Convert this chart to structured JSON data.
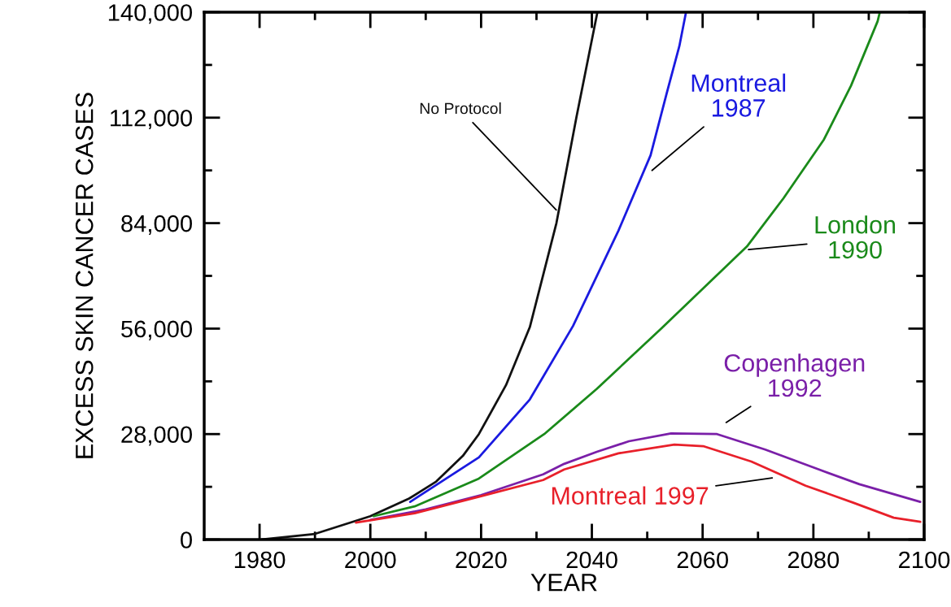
{
  "chart_data": {
    "type": "line",
    "xlabel": "YEAR",
    "ylabel": "EXCESS SKIN CANCER CASES",
    "xlim": [
      1970,
      2100
    ],
    "ylim": [
      0,
      140000
    ],
    "xticks": [
      1980,
      {
        "value": 1990,
        "label": null
      },
      2000,
      {
        "value": 2010,
        "label": null
      },
      2020,
      {
        "value": 2030,
        "label": null
      },
      2040,
      {
        "value": 2050,
        "label": null
      },
      2060,
      {
        "value": 2070,
        "label": null
      },
      2080,
      {
        "value": 2090,
        "label": null
      },
      2100
    ],
    "yticks": [
      {
        "value": 0,
        "label": "0"
      },
      {
        "value": 14000,
        "label": null
      },
      {
        "value": 28000,
        "label": "28,000"
      },
      {
        "value": 42000,
        "label": null
      },
      {
        "value": 56000,
        "label": "56,000"
      },
      {
        "value": 70000,
        "label": null
      },
      {
        "value": 84000,
        "label": "84,000"
      },
      {
        "value": 98000,
        "label": null
      },
      {
        "value": 112000,
        "label": "112,000"
      },
      {
        "value": 126000,
        "label": null
      },
      {
        "value": 140000,
        "label": "140,000"
      }
    ],
    "grid": false,
    "legend": false,
    "marker": "none",
    "line_style": "solid",
    "series": [
      {
        "name": "No Protocol",
        "color": "#111111",
        "x": [
          1980.4,
          1990,
          2000,
          2007,
          2011.9,
          2016.7,
          2019.6,
          2024.5,
          2028.8,
          2033.6,
          2037.2,
          2041
        ],
        "values": [
          0,
          1500,
          6200,
          10900,
          15400,
          22200,
          28000,
          41000,
          56400,
          84000,
          112000,
          140000
        ]
      },
      {
        "name": "Montreal\n1987",
        "color": "#1a1ae0",
        "x": [
          2007.2,
          2019.6,
          2028.8,
          2036.6,
          2044.8,
          2050.6,
          2053.5,
          2055.8,
          2057
        ],
        "values": [
          10000,
          21800,
          37200,
          56700,
          82000,
          102000,
          118400,
          131000,
          140000
        ]
      },
      {
        "name": "London\n1990",
        "color": "#1a8a1a",
        "x": [
          2000.6,
          2008,
          2019.6,
          2031.4,
          2040.9,
          2052.5,
          2068,
          2074.6,
          2081.9,
          2086.8,
          2091.6,
          2092
        ],
        "values": [
          6200,
          8800,
          16200,
          28000,
          40000,
          56000,
          77800,
          90600,
          106200,
          120500,
          137600,
          140000
        ]
      },
      {
        "name": "Copenhagen\n1992",
        "color": "#7a1fa8",
        "x": [
          2000,
          2010,
          2020,
          2031.2,
          2035,
          2040.9,
          2046.7,
          2054.3,
          2062.6,
          2071.3,
          2081,
          2088.3,
          2099.3
        ],
        "values": [
          5200,
          8000,
          11800,
          17300,
          20100,
          23300,
          26100,
          28200,
          28000,
          23900,
          18600,
          14700,
          10000
        ]
      },
      {
        "name": "Montreal 1997",
        "color": "#e8202a",
        "x": [
          1997.4,
          2008,
          2020,
          2031.2,
          2035,
          2044.8,
          2054.9,
          2060.1,
          2068.8,
          2078.6,
          2087.2,
          2094.5,
          2099.3
        ],
        "values": [
          4500,
          7000,
          11500,
          15800,
          18600,
          22900,
          25200,
          24800,
          20700,
          14300,
          9800,
          5800,
          4700
        ]
      }
    ]
  }
}
